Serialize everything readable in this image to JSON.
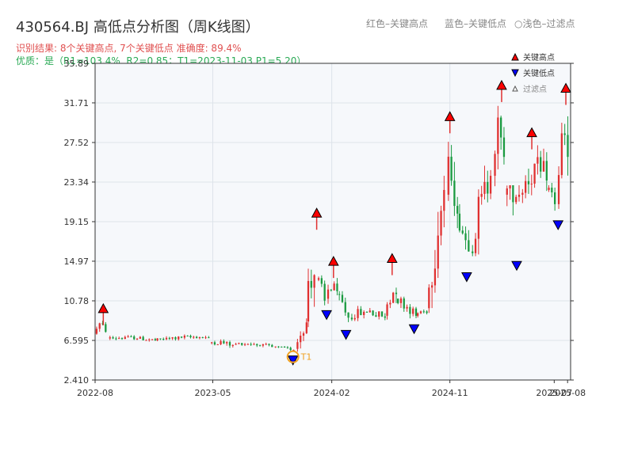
{
  "header": {
    "title": "430564.BJ 高低点分析图（周K线图）",
    "subtitle": "识别结果: 8个关键高点, 7个关键低点  准确度: 89.4%",
    "quality": "优质：是（R1=103.4%, R2=0.85；T1=2023-11-03 P1=5.20）"
  },
  "top_legend": {
    "red": "红色–关键高点",
    "blue": "蓝色–关键低点",
    "light": "○浅色–过滤点"
  },
  "colors": {
    "up": "#e03030",
    "down": "#1a9a40",
    "high_marker": "#ff0000",
    "low_marker": "#0000ff",
    "t1_marker": "#f0a020"
  },
  "chart_data": {
    "type": "candlestick",
    "ylim": [
      2.41,
      35.89
    ],
    "y_ticks": [
      "2.410",
      "6.595",
      "10.78",
      "14.97",
      "19.15",
      "23.34",
      "27.52",
      "31.71",
      "35.89"
    ],
    "x_ticks": [
      "2022-08",
      "2023-05",
      "2024-02",
      "2024-11",
      "2025-07",
      "2025-08"
    ],
    "x_range": [
      "2022-08-01",
      "2025-08-08"
    ],
    "series": [
      {
        "start": "2022-08-01",
        "end": "2022-09-01",
        "open": 7.3,
        "close": 7.5,
        "low": 7.2,
        "high": 9.2
      },
      {
        "start": "2022-09-01",
        "end": "2022-12-20",
        "open": 6.8,
        "close": 6.6,
        "low": 6.1,
        "high": 7.2
      },
      {
        "start": "2022-12-20",
        "end": "2023-04-25",
        "open": 6.6,
        "close": 6.9,
        "low": 6.3,
        "high": 7.3
      },
      {
        "start": "2023-04-25",
        "end": "2023-06-20",
        "open": 6.4,
        "close": 6.1,
        "low": 5.3,
        "high": 6.7
      },
      {
        "start": "2023-06-20",
        "end": "2023-09-20",
        "open": 6.2,
        "close": 5.9,
        "low": 5.6,
        "high": 6.6
      },
      {
        "start": "2023-09-20",
        "end": "2023-11-10",
        "open": 5.9,
        "close": 5.6,
        "low": 5.2,
        "high": 6.0
      },
      {
        "start": "2023-11-10",
        "end": "2023-12-05",
        "open": 5.7,
        "close": 8.5,
        "low": 5.4,
        "high": 9.5
      },
      {
        "start": "2023-12-05",
        "end": "2023-12-29",
        "open": 8.6,
        "close": 13.5,
        "low": 8.0,
        "high": 19.3
      },
      {
        "start": "2023-12-29",
        "end": "2024-01-20",
        "open": 13.0,
        "close": 10.8,
        "low": 10.0,
        "high": 14.0
      },
      {
        "start": "2024-01-20",
        "end": "2024-02-15",
        "open": 11.0,
        "close": 11.8,
        "low": 10.1,
        "high": 14.2
      },
      {
        "start": "2024-02-15",
        "end": "2024-03-15",
        "open": 11.5,
        "close": 9.0,
        "low": 7.9,
        "high": 11.8
      },
      {
        "start": "2024-03-15",
        "end": "2024-06-05",
        "open": 9.0,
        "close": 9.0,
        "low": 8.2,
        "high": 10.5
      },
      {
        "start": "2024-06-05",
        "end": "2024-06-30",
        "open": 9.2,
        "close": 11.5,
        "low": 8.8,
        "high": 14.5
      },
      {
        "start": "2024-06-30",
        "end": "2024-08-15",
        "open": 11.0,
        "close": 9.2,
        "low": 8.5,
        "high": 11.5
      },
      {
        "start": "2024-08-15",
        "end": "2024-09-10",
        "open": 9.2,
        "close": 9.5,
        "low": 8.8,
        "high": 10.0
      },
      {
        "start": "2024-09-10",
        "end": "2024-10-25",
        "open": 10.0,
        "close": 22.5,
        "low": 9.5,
        "high": 24.0
      },
      {
        "start": "2024-10-25",
        "end": "2024-11-20",
        "open": 22.0,
        "close": 20.0,
        "low": 18.0,
        "high": 29.5
      },
      {
        "start": "2024-11-20",
        "end": "2024-12-20",
        "open": 20.0,
        "close": 16.0,
        "low": 14.0,
        "high": 21.0
      },
      {
        "start": "2024-12-20",
        "end": "2025-02-10",
        "open": 16.0,
        "close": 24.0,
        "low": 15.5,
        "high": 26.0
      },
      {
        "start": "2025-02-10",
        "end": "2025-03-10",
        "open": 24.0,
        "close": 26.0,
        "low": 22.0,
        "high": 32.8
      },
      {
        "start": "2025-03-10",
        "end": "2025-04-15",
        "open": 22.0,
        "close": 22.0,
        "low": 15.2,
        "high": 23.0
      },
      {
        "start": "2025-04-15",
        "end": "2025-06-15",
        "open": 22.0,
        "close": 23.5,
        "low": 20.0,
        "high": 27.8
      },
      {
        "start": "2025-06-15",
        "end": "2025-07-08",
        "open": 22.5,
        "close": 21.0,
        "low": 19.5,
        "high": 23.5
      },
      {
        "start": "2025-07-08",
        "end": "2025-08-08",
        "open": 21.0,
        "close": 26.0,
        "low": 20.5,
        "high": 32.5
      }
    ],
    "key_highs": [
      {
        "date": "2022-08-20",
        "price": 9.2
      },
      {
        "date": "2023-12-28",
        "price": 19.3
      },
      {
        "date": "2024-02-05",
        "price": 14.2
      },
      {
        "date": "2024-06-20",
        "price": 14.5
      },
      {
        "date": "2024-11-01",
        "price": 29.5
      },
      {
        "date": "2025-03-01",
        "price": 32.8
      },
      {
        "date": "2025-05-10",
        "price": 27.8
      },
      {
        "date": "2025-07-28",
        "price": 32.5
      }
    ],
    "key_lows": [
      {
        "date": "2023-11-03",
        "price": 5.2
      },
      {
        "date": "2024-01-20",
        "price": 10.0
      },
      {
        "date": "2024-03-05",
        "price": 7.9
      },
      {
        "date": "2024-08-10",
        "price": 8.5
      },
      {
        "date": "2024-12-10",
        "price": 14.0
      },
      {
        "date": "2025-04-05",
        "price": 15.2
      },
      {
        "date": "2025-07-10",
        "price": 19.5
      }
    ],
    "t1": {
      "date": "2023-11-03",
      "price": 5.2,
      "label": "T1"
    },
    "legend": {
      "position": "top-right",
      "items": [
        "关键高点",
        "关键低点",
        "过滤点"
      ]
    }
  }
}
